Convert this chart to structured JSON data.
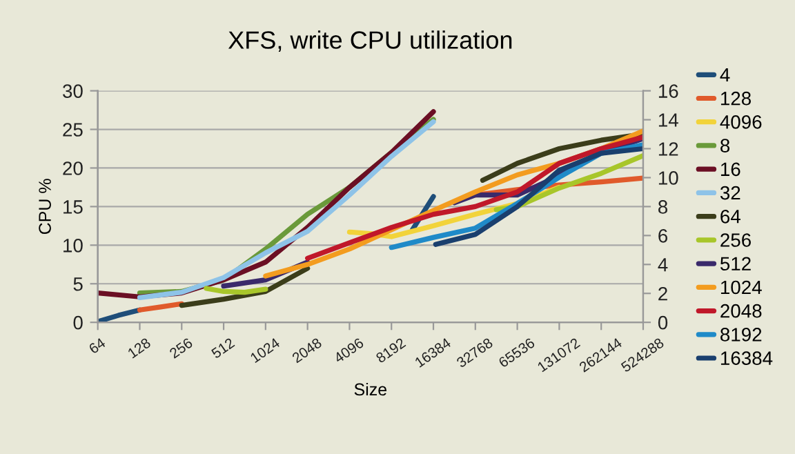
{
  "chart_data": {
    "type": "line",
    "title": "XFS, write CPU utilization",
    "xlabel": "Size",
    "ylabel": "CPU %",
    "log": "x",
    "xlim": [
      64,
      524288
    ],
    "xticks": [
      64,
      128,
      256,
      512,
      1024,
      2048,
      4096,
      8192,
      16384,
      32768,
      65536,
      131072,
      262144,
      524288
    ],
    "ylim": [
      0,
      30
    ],
    "yticks": [
      0,
      5,
      10,
      15,
      20,
      25,
      30
    ],
    "y2lim": [
      0,
      16
    ],
    "y2ticks": [
      0,
      2,
      4,
      6,
      8,
      10,
      12,
      14,
      16
    ],
    "grid": "y",
    "legend": "right",
    "line_style": "solid",
    "marker": "none",
    "series": [
      {
        "name": "4",
        "color": "#1f4e79",
        "x": [
          64,
          90,
          128,
          181,
          11585,
          16384
        ],
        "values": [
          0.1,
          0.9,
          1.6,
          null,
          12,
          16.3
        ]
      },
      {
        "name": "128",
        "color": "#e05a2b",
        "x": [
          128,
          181,
          256,
          362,
          32768,
          65536,
          131072,
          262144,
          524288
        ],
        "values": [
          1.6,
          2.0,
          2.4,
          null,
          16.5,
          17.2,
          17.8,
          18.2,
          18.7
        ]
      },
      {
        "name": "4096",
        "color": "#f2d33a",
        "x": [
          4096,
          5793,
          8192,
          16384,
          32768,
          65536,
          131072
        ],
        "values": [
          11.7,
          11.5,
          11.1,
          12.5,
          14,
          15.4,
          17.5
        ]
      },
      {
        "name": "8",
        "color": "#6a9a3a",
        "x": [
          128,
          256,
          512,
          1024,
          2048,
          4096,
          8192,
          16384
        ],
        "values": [
          3.8,
          4.0,
          5.5,
          9.5,
          14,
          17.5,
          22,
          26.3
        ]
      },
      {
        "name": "16",
        "color": "#6b0f24",
        "x": [
          64,
          128,
          256,
          512,
          1024,
          2048,
          4096,
          8192,
          16384
        ],
        "values": [
          3.8,
          3.3,
          3.8,
          5.5,
          7.8,
          12.3,
          17.5,
          22,
          27.3
        ]
      },
      {
        "name": "32",
        "color": "#8ec3e8",
        "x": [
          128,
          256,
          512,
          1024,
          2048,
          4096,
          8192,
          16384
        ],
        "values": [
          3.2,
          3.9,
          5.8,
          9,
          11.8,
          16.5,
          21.5,
          26
        ]
      },
      {
        "name": "64",
        "color": "#3b3d1a",
        "x": [
          256,
          512,
          1024,
          2048,
          2896,
          37000,
          65536,
          131072,
          262144,
          524288
        ],
        "values": [
          2.2,
          3.0,
          4.0,
          7,
          null,
          18.4,
          20.6,
          22.5,
          23.6,
          24.4
        ]
      },
      {
        "name": "256",
        "color": "#a8c62a",
        "x": [
          384,
          512,
          724,
          1024,
          1448,
          46341,
          65536,
          131072,
          262144,
          524288
        ],
        "values": [
          4.4,
          4.0,
          3.9,
          4.3,
          null,
          14.6,
          15,
          17.4,
          19.3,
          21.6
        ]
      },
      {
        "name": "512",
        "color": "#3a2a6b",
        "x": [
          512,
          1024,
          2048,
          2896,
          23170,
          32768,
          65536,
          131072,
          262144,
          524288
        ],
        "values": [
          4.7,
          5.5,
          7.8,
          null,
          15.5,
          16.5,
          16.5,
          19,
          22,
          23.8
        ]
      },
      {
        "name": "1024",
        "color": "#f39c1f",
        "x": [
          1024,
          2048,
          4096,
          8192,
          16384,
          32768,
          65536,
          131072,
          262144,
          524288
        ],
        "values": [
          6,
          7.5,
          9.5,
          12,
          14.5,
          16.9,
          19.1,
          20.6,
          22.5,
          24.8
        ]
      },
      {
        "name": "2048",
        "color": "#c0182a",
        "x": [
          2048,
          4096,
          8192,
          16384,
          32768,
          65536,
          131072,
          262144,
          524288
        ],
        "values": [
          8.3,
          10.3,
          12.3,
          14,
          15,
          16.9,
          20.6,
          22.5,
          24
        ]
      },
      {
        "name": "8192",
        "color": "#1f8ac8",
        "x": [
          8192,
          16384,
          32768,
          65536,
          131072,
          262144,
          524288
        ],
        "values": [
          9.7,
          11,
          12.2,
          15.4,
          18.8,
          21.9,
          23
        ]
      },
      {
        "name": "16384",
        "color": "#1a3f6e",
        "x": [
          17000,
          32768,
          65536,
          131072,
          262144,
          524288
        ],
        "values": [
          10.1,
          11.4,
          15,
          19.7,
          21.9,
          22.5
        ]
      }
    ]
  }
}
